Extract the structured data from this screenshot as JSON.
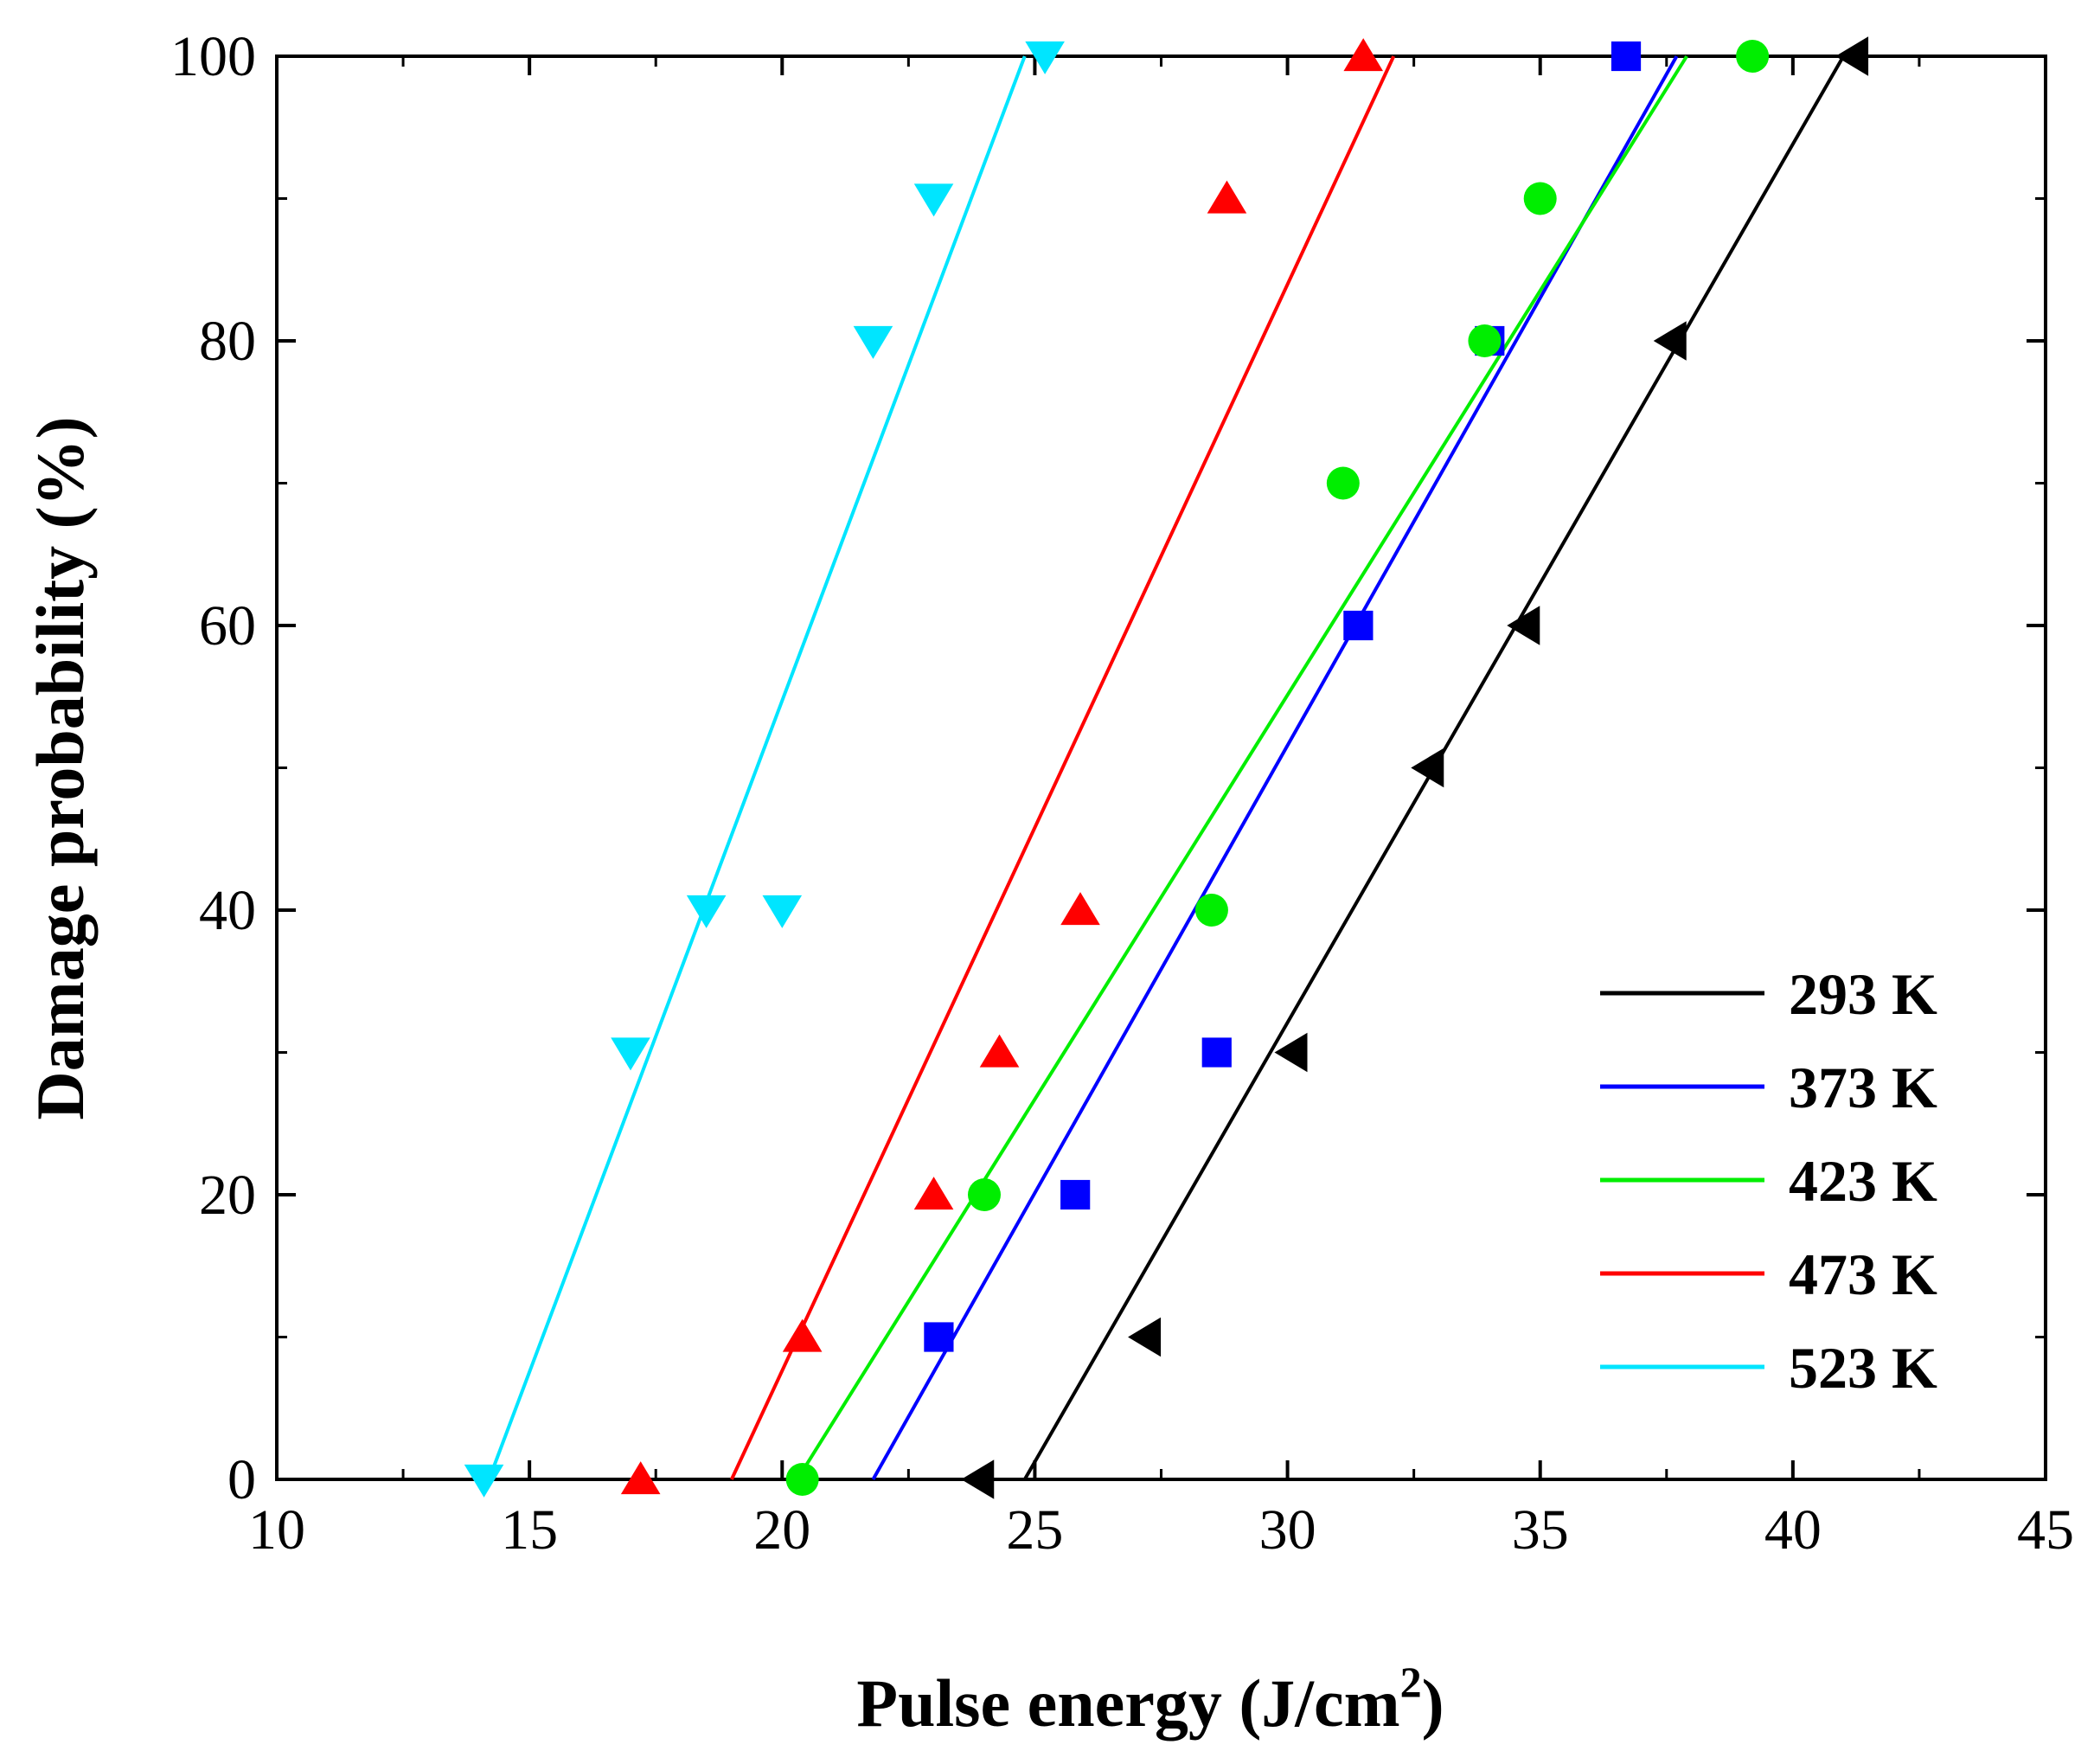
{
  "chart_data": {
    "type": "scatter",
    "xlabel": "Pulse energy (J/cm",
    "xlabel_sup": "2",
    "xlabel_close": ")",
    "ylabel": "Damage probability (%)",
    "xlim": [
      10,
      45
    ],
    "ylim": [
      0,
      100
    ],
    "xticks": [
      10,
      15,
      20,
      25,
      30,
      35,
      40,
      45
    ],
    "yticks": [
      0,
      20,
      40,
      60,
      80,
      100
    ],
    "legend_position": "bottom-right",
    "series": [
      {
        "name": "293 K",
        "color": "#000000",
        "marker": "triangle-left",
        "points": [
          [
            23.9,
            0
          ],
          [
            27.2,
            10
          ],
          [
            30.1,
            30
          ],
          [
            32.8,
            50
          ],
          [
            34.7,
            60
          ],
          [
            37.6,
            80
          ],
          [
            41.2,
            100
          ]
        ],
        "fit": [
          [
            24.8,
            0
          ],
          [
            41.0,
            100
          ]
        ]
      },
      {
        "name": "373 K",
        "color": "#0000FF",
        "marker": "square",
        "points": [
          [
            23.1,
            10
          ],
          [
            25.8,
            20
          ],
          [
            28.6,
            30
          ],
          [
            31.4,
            60
          ],
          [
            34.0,
            80
          ],
          [
            36.7,
            100
          ]
        ],
        "fit": [
          [
            21.8,
            0
          ],
          [
            37.7,
            100
          ]
        ]
      },
      {
        "name": "423 K",
        "color": "#00EE00",
        "marker": "circle",
        "points": [
          [
            20.4,
            0
          ],
          [
            24.0,
            20
          ],
          [
            28.5,
            40
          ],
          [
            31.1,
            70
          ],
          [
            33.9,
            80
          ],
          [
            35.0,
            90
          ],
          [
            39.2,
            100
          ]
        ],
        "fit": [
          [
            20.3,
            0
          ],
          [
            37.9,
            100
          ]
        ]
      },
      {
        "name": "473 K",
        "color": "#FF0000",
        "marker": "triangle-up",
        "points": [
          [
            17.2,
            0
          ],
          [
            20.4,
            10
          ],
          [
            23.0,
            20
          ],
          [
            24.3,
            30
          ],
          [
            25.9,
            40
          ],
          [
            28.8,
            90
          ],
          [
            31.5,
            100
          ]
        ],
        "fit": [
          [
            19.0,
            0
          ],
          [
            32.1,
            100
          ]
        ]
      },
      {
        "name": "523 K",
        "color": "#00E5FF",
        "marker": "triangle-down",
        "points": [
          [
            14.1,
            0
          ],
          [
            17.0,
            30
          ],
          [
            18.5,
            40
          ],
          [
            20.0,
            40
          ],
          [
            21.8,
            80
          ],
          [
            23.0,
            90
          ],
          [
            25.2,
            100
          ]
        ],
        "fit": [
          [
            14.2,
            0
          ],
          [
            24.8,
            100
          ]
        ]
      }
    ]
  }
}
